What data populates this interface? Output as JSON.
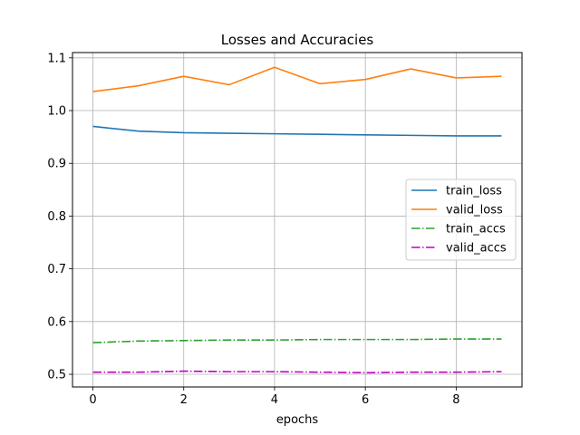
{
  "chart_data": {
    "type": "line",
    "title": "Losses and Accuracies",
    "xlabel": "epochs",
    "ylabel": "",
    "x": [
      0,
      1,
      2,
      3,
      4,
      5,
      6,
      7,
      8,
      9
    ],
    "xlim": [
      -0.45,
      9.45
    ],
    "ylim": [
      0.476,
      1.11
    ],
    "xticks": [
      0,
      2,
      4,
      6,
      8
    ],
    "xtick_labels": [
      "0",
      "2",
      "4",
      "6",
      "8"
    ],
    "yticks": [
      0.5,
      0.6,
      0.7,
      0.8,
      0.9,
      1.0,
      1.1
    ],
    "ytick_labels": [
      "0.5",
      "0.6",
      "0.7",
      "0.8",
      "0.9",
      "1.0",
      "1.1"
    ],
    "grid": true,
    "legend_position": "center-right",
    "series": [
      {
        "name": "train_loss",
        "color": "#1f77b4",
        "linestyle": "solid",
        "values": [
          0.97,
          0.961,
          0.958,
          0.957,
          0.956,
          0.955,
          0.954,
          0.953,
          0.952,
          0.952
        ]
      },
      {
        "name": "valid_loss",
        "color": "#ff7f0e",
        "linestyle": "solid",
        "values": [
          1.036,
          1.047,
          1.065,
          1.049,
          1.082,
          1.051,
          1.059,
          1.079,
          1.062,
          1.065
        ]
      },
      {
        "name": "train_accs",
        "color": "#2ca02c",
        "linestyle": "dashdot",
        "values": [
          0.56,
          0.563,
          0.564,
          0.565,
          0.565,
          0.566,
          0.566,
          0.566,
          0.567,
          0.567
        ]
      },
      {
        "name": "valid_accs",
        "color": "#bf00bf",
        "linestyle": "dashdot",
        "values": [
          0.504,
          0.504,
          0.506,
          0.505,
          0.505,
          0.504,
          0.503,
          0.504,
          0.504,
          0.505
        ]
      }
    ]
  }
}
